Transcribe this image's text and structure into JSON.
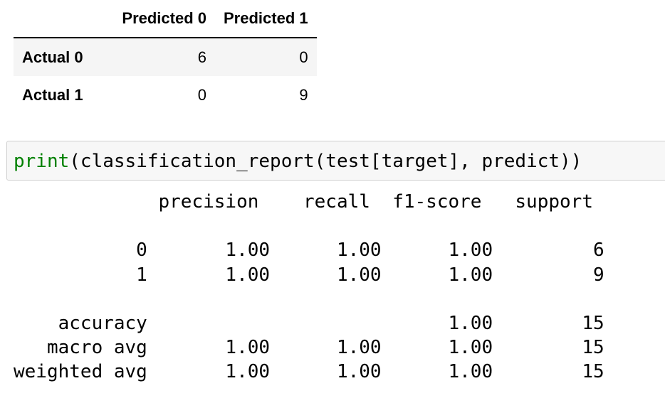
{
  "dataframe": {
    "columns": [
      "Predicted 0",
      "Predicted 1"
    ],
    "rows": [
      {
        "label": "Actual 0",
        "values": [
          "6",
          "0"
        ]
      },
      {
        "label": "Actual 1",
        "values": [
          "0",
          "9"
        ]
      }
    ]
  },
  "code_cell": {
    "builtin": "print",
    "rest": "(classification_report(test[target], predict))"
  },
  "output": {
    "header": "             precision    recall  f1-score   support",
    "lines": [
      "",
      "           0       1.00      1.00      1.00         6",
      "           1       1.00      1.00      1.00         9",
      "",
      "    accuracy                           1.00        15",
      "   macro avg       1.00      1.00      1.00        15",
      "weighted avg       1.00      1.00      1.00        15"
    ]
  },
  "colors": {
    "builtin_keyword": "#008000",
    "code_background": "#f7f7f7",
    "code_border": "#cfcfcf",
    "table_stripe": "#f5f5f5"
  }
}
